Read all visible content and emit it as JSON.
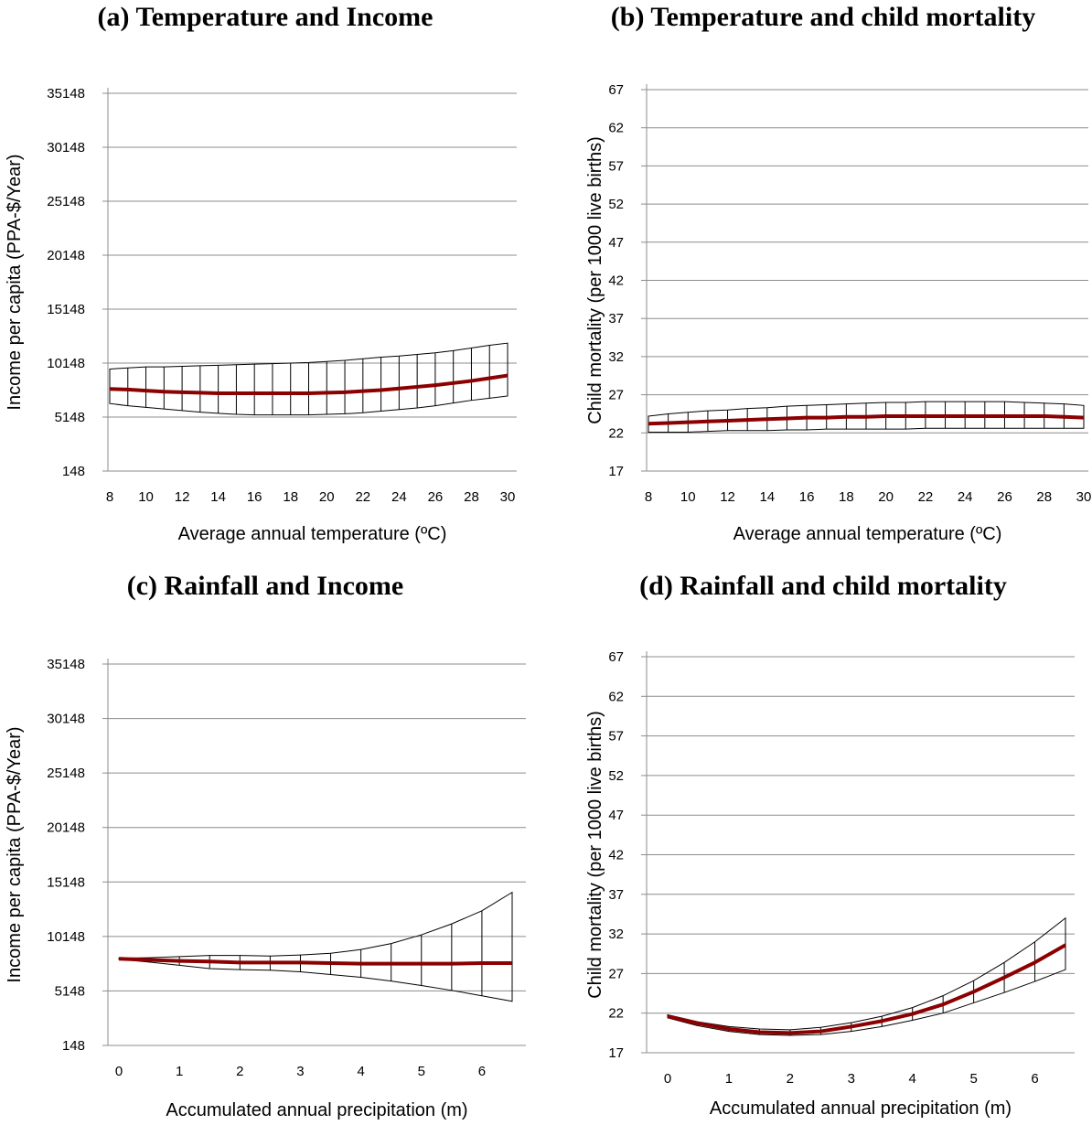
{
  "chart_data": [
    {
      "type": "line",
      "title": "(a) Temperature and Income",
      "xlabel": "Average annual temperature (ºC)",
      "ylabel": "Income per capita (PPA-$/Year)",
      "xlim": [
        8,
        30
      ],
      "ylim": [
        148,
        35148
      ],
      "xticks": [
        "8",
        "10",
        "12",
        "14",
        "16",
        "18",
        "20",
        "22",
        "24",
        "26",
        "28",
        "30"
      ],
      "yticks": [
        "148",
        "5148",
        "10148",
        "15148",
        "20148",
        "25148",
        "30148",
        "35148"
      ],
      "grid": true,
      "series": [
        {
          "role": "estimate",
          "color": "#8b0000",
          "x": [
            8,
            9,
            10,
            11,
            12,
            13,
            14,
            15,
            16,
            17,
            18,
            19,
            20,
            21,
            22,
            23,
            24,
            25,
            26,
            27,
            28,
            29,
            30
          ],
          "y": [
            7750,
            7700,
            7600,
            7500,
            7450,
            7400,
            7350,
            7350,
            7350,
            7350,
            7350,
            7350,
            7400,
            7450,
            7550,
            7650,
            7800,
            7950,
            8100,
            8300,
            8500,
            8750,
            9000
          ]
        },
        {
          "role": "confidence-band",
          "x": [
            8,
            9,
            10,
            11,
            12,
            13,
            14,
            15,
            16,
            17,
            18,
            19,
            20,
            21,
            22,
            23,
            24,
            25,
            26,
            27,
            28,
            29,
            30
          ],
          "upper": [
            9600,
            9700,
            9800,
            9800,
            9850,
            9900,
            9950,
            10000,
            10050,
            10100,
            10150,
            10200,
            10300,
            10400,
            10550,
            10700,
            10800,
            10950,
            11100,
            11300,
            11550,
            11800,
            12000
          ],
          "lower": [
            6400,
            6200,
            6050,
            5900,
            5750,
            5600,
            5500,
            5400,
            5350,
            5350,
            5350,
            5350,
            5400,
            5450,
            5550,
            5700,
            5850,
            6000,
            6200,
            6450,
            6700,
            6900,
            7100
          ]
        }
      ]
    },
    {
      "type": "line",
      "title": "(b) Temperature and child mortality",
      "xlabel": "Average annual temperature (ºC)",
      "ylabel": "Child mortality (per 1000 live births)",
      "xlim": [
        8,
        30
      ],
      "ylim": [
        17,
        67
      ],
      "xticks": [
        "8",
        "10",
        "12",
        "14",
        "16",
        "18",
        "20",
        "22",
        "24",
        "26",
        "28",
        "30"
      ],
      "yticks": [
        "17",
        "22",
        "27",
        "32",
        "37",
        "42",
        "47",
        "52",
        "57",
        "62",
        "67"
      ],
      "grid": true,
      "series": [
        {
          "role": "estimate",
          "color": "#8b0000",
          "x": [
            8,
            9,
            10,
            11,
            12,
            13,
            14,
            15,
            16,
            17,
            18,
            19,
            20,
            21,
            22,
            23,
            24,
            25,
            26,
            27,
            28,
            29,
            30
          ],
          "y": [
            23.2,
            23.3,
            23.4,
            23.5,
            23.6,
            23.7,
            23.8,
            23.9,
            24.0,
            24.0,
            24.1,
            24.1,
            24.2,
            24.2,
            24.2,
            24.2,
            24.2,
            24.2,
            24.2,
            24.2,
            24.2,
            24.1,
            24.0
          ]
        },
        {
          "role": "confidence-band",
          "x": [
            8,
            9,
            10,
            11,
            12,
            13,
            14,
            15,
            16,
            17,
            18,
            19,
            20,
            21,
            22,
            23,
            24,
            25,
            26,
            27,
            28,
            29,
            30
          ],
          "upper": [
            24.2,
            24.5,
            24.7,
            24.9,
            25.0,
            25.2,
            25.3,
            25.5,
            25.6,
            25.7,
            25.8,
            25.9,
            26.0,
            26.0,
            26.1,
            26.1,
            26.1,
            26.1,
            26.1,
            26.0,
            25.9,
            25.8,
            25.6
          ],
          "lower": [
            22.1,
            22.1,
            22.1,
            22.2,
            22.3,
            22.3,
            22.3,
            22.4,
            22.4,
            22.5,
            22.5,
            22.5,
            22.5,
            22.5,
            22.6,
            22.6,
            22.6,
            22.6,
            22.6,
            22.6,
            22.6,
            22.6,
            22.6
          ]
        }
      ]
    },
    {
      "type": "line",
      "title": "(c) Rainfall and Income",
      "xlabel": "Accumulated annual precipitation (m)",
      "ylabel": "Income per capita (PPA-$/Year)",
      "xlim": [
        0,
        6.5
      ],
      "ylim": [
        148,
        35148
      ],
      "xticks": [
        "0",
        "1",
        "2",
        "3",
        "4",
        "5",
        "6"
      ],
      "yticks": [
        "148",
        "5148",
        "10148",
        "15148",
        "20148",
        "25148",
        "30148",
        "35148"
      ],
      "grid": true,
      "series": [
        {
          "role": "estimate",
          "color": "#8b0000",
          "x": [
            0,
            0.5,
            1,
            1.5,
            2,
            2.5,
            3,
            3.5,
            4,
            4.5,
            5,
            5.5,
            6,
            6.5
          ],
          "y": [
            8100,
            8000,
            7900,
            7850,
            7750,
            7750,
            7750,
            7700,
            7650,
            7650,
            7650,
            7650,
            7700,
            7700
          ]
        },
        {
          "role": "confidence-band",
          "x": [
            0,
            0.5,
            1,
            1.5,
            2,
            2.5,
            3,
            3.5,
            4,
            4.5,
            5,
            5.5,
            6,
            6.5
          ],
          "upper": [
            8150,
            8200,
            8300,
            8400,
            8400,
            8350,
            8450,
            8600,
            8950,
            9500,
            10300,
            11300,
            12500,
            14200
          ],
          "lower": [
            8050,
            7800,
            7500,
            7200,
            7100,
            7050,
            6900,
            6650,
            6400,
            6050,
            5650,
            5200,
            4700,
            4200
          ]
        }
      ]
    },
    {
      "type": "line",
      "title": "(d) Rainfall and child mortality",
      "xlabel": "Accumulated annual precipitation (m)",
      "ylabel": "Child mortality (per 1000 live births)",
      "xlim": [
        0,
        6.5
      ],
      "ylim": [
        17,
        67
      ],
      "xticks": [
        "0",
        "1",
        "2",
        "3",
        "4",
        "5",
        "6"
      ],
      "yticks": [
        "17",
        "22",
        "27",
        "32",
        "37",
        "42",
        "47",
        "52",
        "57",
        "62",
        "67"
      ],
      "grid": true,
      "series": [
        {
          "role": "estimate",
          "color": "#8b0000",
          "x": [
            0,
            0.5,
            1,
            1.5,
            2,
            2.5,
            3,
            3.5,
            4,
            4.5,
            5,
            5.5,
            6,
            6.5
          ],
          "y": [
            21.6,
            20.7,
            20.0,
            19.6,
            19.5,
            19.7,
            20.3,
            21.0,
            21.9,
            23.1,
            24.7,
            26.5,
            28.4,
            30.6
          ]
        },
        {
          "role": "confidence-band",
          "x": [
            0,
            0.5,
            1,
            1.5,
            2,
            2.5,
            3,
            3.5,
            4,
            4.5,
            5,
            5.5,
            6,
            6.5
          ],
          "upper": [
            21.8,
            20.9,
            20.3,
            20.0,
            19.9,
            20.2,
            20.8,
            21.6,
            22.7,
            24.2,
            26.1,
            28.4,
            31.0,
            34.0
          ],
          "lower": [
            21.4,
            20.4,
            19.7,
            19.3,
            19.2,
            19.3,
            19.7,
            20.3,
            21.1,
            22.0,
            23.3,
            24.6,
            26.0,
            27.5
          ]
        }
      ]
    }
  ]
}
